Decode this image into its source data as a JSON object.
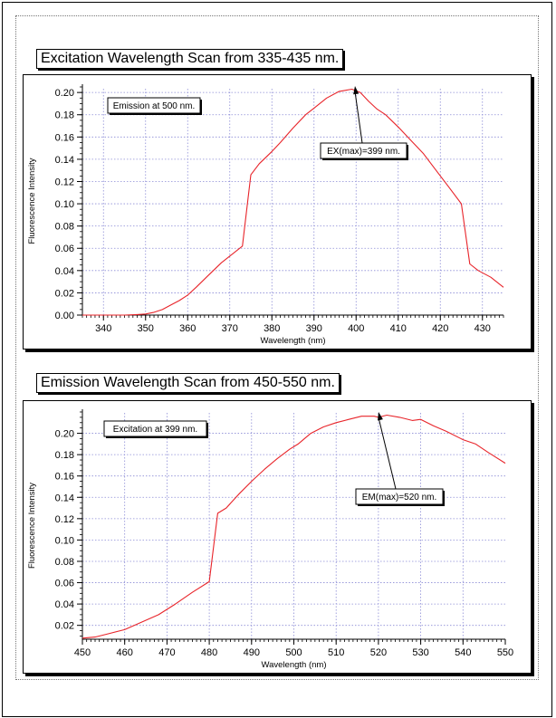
{
  "chart_data": [
    {
      "type": "line",
      "title": "Excitation Wavelength Scan from 335-435 nm.",
      "xlabel": "Wavelength (nm)",
      "ylabel": "Fluorescence Intensity",
      "xlim": [
        335,
        435
      ],
      "ylim": [
        0,
        0.205
      ],
      "xticks": [
        340,
        350,
        360,
        370,
        380,
        390,
        400,
        410,
        420,
        430
      ],
      "xtick_labels": [
        "340",
        "350",
        "360",
        "370",
        "380",
        "390",
        "400",
        "410",
        "420",
        "430"
      ],
      "yticks": [
        0,
        0.02,
        0.04,
        0.06,
        0.08,
        0.1,
        0.12,
        0.14,
        0.16,
        0.18,
        0.2
      ],
      "ytick_labels": [
        "0.00",
        "0.02",
        "0.04",
        "0.06",
        "0.08",
        "0.10",
        "0.12",
        "0.14",
        "0.16",
        "0.18",
        "0.20"
      ],
      "grid": true,
      "series": [
        {
          "name": "Excitation",
          "color": "#e8242a",
          "x": [
            335,
            340,
            345,
            348,
            350,
            352,
            354,
            356,
            358,
            360,
            362,
            365,
            368,
            370,
            373,
            375,
            377,
            380,
            382,
            385,
            388,
            390,
            393,
            396,
            399,
            401,
            403,
            405,
            407,
            410,
            413,
            416,
            419,
            422,
            425,
            427,
            429,
            432,
            435
          ],
          "y": [
            0.0,
            0.0,
            0.0,
            0.0005,
            0.001,
            0.0025,
            0.005,
            0.009,
            0.013,
            0.018,
            0.025,
            0.036,
            0.047,
            0.053,
            0.062,
            0.126,
            0.136,
            0.147,
            0.155,
            0.168,
            0.18,
            0.186,
            0.195,
            0.201,
            0.203,
            0.2,
            0.192,
            0.185,
            0.18,
            0.169,
            0.157,
            0.145,
            0.13,
            0.115,
            0.1,
            0.046,
            0.04,
            0.034,
            0.025
          ]
        }
      ],
      "annotations": [
        {
          "text": "Emission at 500 nm."
        },
        {
          "text": "EX(max)=399 nm.",
          "points_to_x": 399,
          "points_to_y": 0.204
        }
      ]
    },
    {
      "type": "line",
      "title": "Emission Wavelength Scan from 450-550 nm.",
      "xlabel": "Wavelength (nm)",
      "ylabel": "Fluorescence Intensity",
      "xlim": [
        450,
        550
      ],
      "ylim": [
        0.007,
        0.22
      ],
      "xticks": [
        450,
        460,
        470,
        480,
        490,
        500,
        510,
        520,
        530,
        540,
        550
      ],
      "xtick_labels": [
        "450",
        "460",
        "470",
        "480",
        "490",
        "500",
        "510",
        "520",
        "530",
        "540",
        "550"
      ],
      "yticks": [
        0.02,
        0.04,
        0.06,
        0.08,
        0.1,
        0.12,
        0.14,
        0.16,
        0.18,
        0.2
      ],
      "ytick_labels": [
        "0.02",
        "0.04",
        "0.06",
        "0.08",
        "0.10",
        "0.12",
        "0.14",
        "0.16",
        "0.18",
        "0.20"
      ],
      "grid": true,
      "series": [
        {
          "name": "Emission",
          "color": "#e8242a",
          "x": [
            450,
            453,
            456,
            460,
            464,
            468,
            472,
            476,
            480,
            482,
            484,
            487,
            490,
            493,
            496,
            499,
            501,
            504,
            507,
            510,
            513,
            516,
            519,
            520,
            522,
            525,
            528,
            530,
            533,
            536,
            540,
            543,
            546,
            550
          ],
          "y": [
            0.008,
            0.009,
            0.012,
            0.016,
            0.023,
            0.03,
            0.04,
            0.051,
            0.061,
            0.125,
            0.13,
            0.143,
            0.155,
            0.166,
            0.176,
            0.185,
            0.19,
            0.2,
            0.206,
            0.21,
            0.213,
            0.216,
            0.216,
            0.215,
            0.217,
            0.215,
            0.212,
            0.213,
            0.207,
            0.202,
            0.194,
            0.19,
            0.182,
            0.172
          ]
        }
      ],
      "annotations": [
        {
          "text": "Excitation at 399 nm."
        },
        {
          "text": "EM(max)=520 nm.",
          "points_to_x": 520,
          "points_to_y": 0.217
        }
      ]
    }
  ]
}
